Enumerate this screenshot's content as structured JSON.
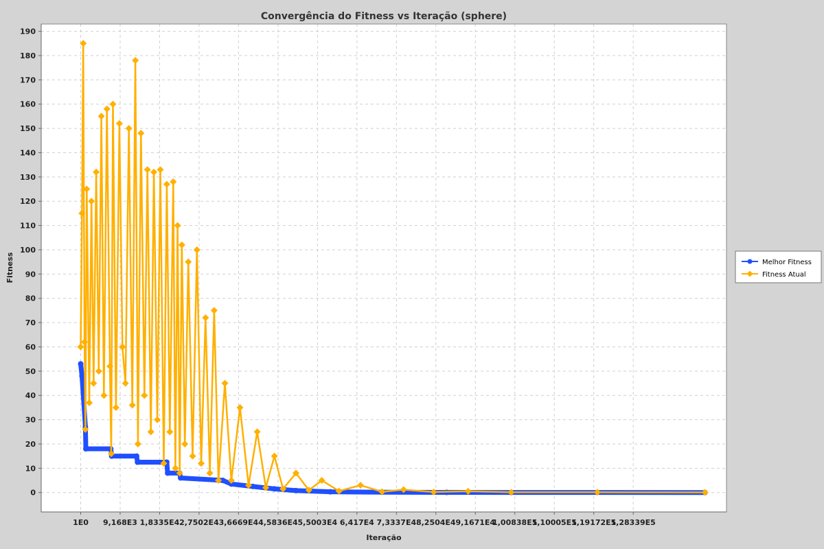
{
  "chart_data": {
    "type": "line",
    "title": "Convergência do Fitness vs Iteração (sphere)",
    "xlabel": "Iteração",
    "ylabel": "Fitness",
    "grid": true,
    "legend_position": "right",
    "xlim": [
      -9168,
      150000
    ],
    "ylim": [
      -8,
      193
    ],
    "x_ticks": [
      {
        "value": 1,
        "label": "1E0"
      },
      {
        "value": 9168,
        "label": "9,168E3"
      },
      {
        "value": 18335,
        "label": "1,8335E4"
      },
      {
        "value": 27502,
        "label": "2,7502E4"
      },
      {
        "value": 36669,
        "label": "3,6669E4"
      },
      {
        "value": 45836,
        "label": "4,5836E4"
      },
      {
        "value": 55003,
        "label": "5,5003E4"
      },
      {
        "value": 64170,
        "label": "6,417E4"
      },
      {
        "value": 73337,
        "label": "7,3337E4"
      },
      {
        "value": 82504,
        "label": "8,2504E4"
      },
      {
        "value": 91671,
        "label": "9,1671E4"
      },
      {
        "value": 100838,
        "label": "1,00838E5"
      },
      {
        "value": 110005,
        "label": "1,10005E5"
      },
      {
        "value": 119172,
        "label": "1,19172E5"
      },
      {
        "value": 128339,
        "label": "1,28339E5"
      }
    ],
    "y_ticks": [
      0,
      10,
      20,
      30,
      40,
      50,
      60,
      70,
      80,
      90,
      100,
      110,
      120,
      130,
      140,
      150,
      160,
      170,
      180,
      190
    ],
    "series": [
      {
        "name": "Melhor Fitness",
        "color": "#1f4fff",
        "marker": "circle",
        "points": [
          [
            1,
            53
          ],
          [
            300,
            48
          ],
          [
            1100,
            27
          ],
          [
            1200,
            18
          ],
          [
            7000,
            18
          ],
          [
            7200,
            15
          ],
          [
            13000,
            15
          ],
          [
            13200,
            12.5
          ],
          [
            20000,
            12.5
          ],
          [
            20200,
            8
          ],
          [
            23000,
            8
          ],
          [
            23200,
            6
          ],
          [
            33000,
            5
          ],
          [
            35000,
            3.5
          ],
          [
            40000,
            2.5
          ],
          [
            45000,
            1.5
          ],
          [
            50000,
            0.8
          ],
          [
            58000,
            0.3
          ],
          [
            70000,
            0.1
          ],
          [
            85000,
            0.05
          ],
          [
            100000,
            0.02
          ],
          [
            145000,
            0.01
          ]
        ]
      },
      {
        "name": "Fitness Atual",
        "color": "#ffb000",
        "marker": "diamond",
        "points": [
          [
            0,
            60
          ],
          [
            300,
            115
          ],
          [
            600,
            185
          ],
          [
            900,
            62
          ],
          [
            1100,
            26
          ],
          [
            1400,
            125
          ],
          [
            2000,
            37
          ],
          [
            2500,
            120
          ],
          [
            3000,
            45
          ],
          [
            3600,
            132
          ],
          [
            4200,
            50
          ],
          [
            4800,
            155
          ],
          [
            5400,
            40
          ],
          [
            6100,
            158
          ],
          [
            6800,
            52
          ],
          [
            7100,
            16
          ],
          [
            7500,
            160
          ],
          [
            8200,
            35
          ],
          [
            9000,
            152
          ],
          [
            9700,
            60
          ],
          [
            10400,
            45
          ],
          [
            11200,
            150
          ],
          [
            12000,
            36
          ],
          [
            12700,
            178
          ],
          [
            13300,
            20
          ],
          [
            14000,
            148
          ],
          [
            14800,
            40
          ],
          [
            15500,
            133
          ],
          [
            16300,
            25
          ],
          [
            17000,
            132
          ],
          [
            17800,
            30
          ],
          [
            18500,
            133
          ],
          [
            19300,
            12
          ],
          [
            20000,
            127
          ],
          [
            20700,
            25
          ],
          [
            21500,
            128
          ],
          [
            22000,
            10
          ],
          [
            22500,
            110
          ],
          [
            23000,
            8
          ],
          [
            23500,
            102
          ],
          [
            24200,
            20
          ],
          [
            25000,
            95
          ],
          [
            26000,
            15
          ],
          [
            27000,
            100
          ],
          [
            28000,
            12
          ],
          [
            29000,
            72
          ],
          [
            30000,
            8
          ],
          [
            31000,
            75
          ],
          [
            32000,
            5
          ],
          [
            33500,
            45
          ],
          [
            35000,
            5
          ],
          [
            37000,
            35
          ],
          [
            39000,
            3
          ],
          [
            41000,
            25
          ],
          [
            43000,
            2
          ],
          [
            45000,
            15
          ],
          [
            47000,
            1.5
          ],
          [
            50000,
            8
          ],
          [
            53000,
            1
          ],
          [
            56000,
            5
          ],
          [
            60000,
            0.6
          ],
          [
            65000,
            3
          ],
          [
            70000,
            0.3
          ],
          [
            75000,
            1.2
          ],
          [
            82000,
            0.2
          ],
          [
            90000,
            0.5
          ],
          [
            100000,
            0.1
          ],
          [
            120000,
            0.1
          ],
          [
            145000,
            0.05
          ]
        ]
      }
    ]
  }
}
